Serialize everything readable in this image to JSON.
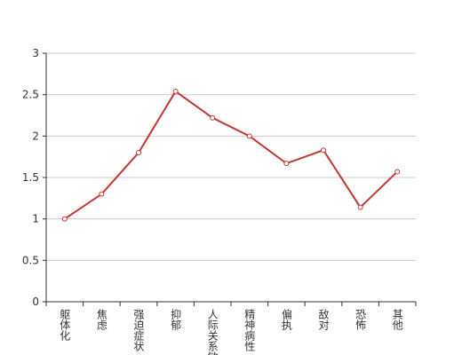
{
  "chart_data": {
    "type": "line",
    "categories": [
      "躯体化",
      "焦虑",
      "强迫症状",
      "抑郁",
      "人际关系敏感",
      "精神病性",
      "偏执",
      "敌对",
      "恐怖",
      "其他"
    ],
    "values": [
      1.0,
      1.3,
      1.8,
      2.54,
      2.22,
      2.0,
      1.67,
      1.83,
      1.14,
      1.57
    ],
    "color": "#c23531",
    "ylim": [
      0,
      3
    ],
    "yticks": [
      0,
      0.5,
      1,
      1.5,
      2,
      2.5,
      3
    ],
    "grid": true
  }
}
